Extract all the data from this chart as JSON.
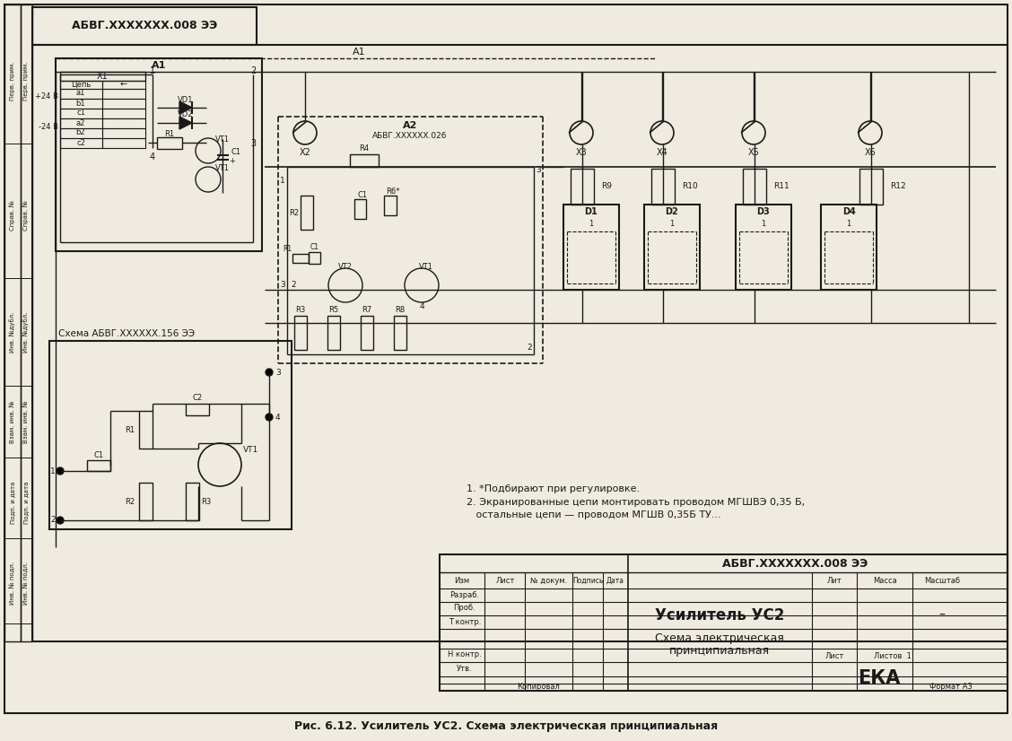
{
  "title": "АБВГ.XXXXXXX.008 ЭЭ",
  "caption": "Рис. 6.12. Усилитель УС2. Схема электрическая принципиальная",
  "bg_color": "#f0ebe0",
  "line_color": "#1a1a1a",
  "title_block": {
    "doc_number": "АБВГ.XXXXXXX.008 ЭЭ",
    "device_name": "Усилитель УС2",
    "scheme_type": "Схема электрическая",
    "scheme_type2": "принципиальная",
    "company": "ЕКА",
    "sheet": "Лист",
    "sheets": "Листов  1",
    "scale": "Масштаб",
    "mass": "Масса",
    "lit": "Лит",
    "format": "Формат А3",
    "copied": "Копировал",
    "izm": "Изм",
    "list": "Лист",
    "ndoc": "№ докум.",
    "podpis": "Подпись",
    "data": "Дата",
    "razrab": "Разраб.",
    "prob": "Проб.",
    "t_kontr": "Т контр.",
    "n_kontr": "Н контр.",
    "utv": "Утв."
  },
  "top_stamp": "АБВГ.XXXXXXX.008 ЭЭ",
  "sub_schema_label": "Схема АБВГ.XXXXXX.156 ЭЭ",
  "note1": "1. *Подбирают при регулировке.",
  "note2": "2. Экранированные цепи монтировать проводом МГШВЭ 0,35 Б,",
  "note3": "   остальные цепи — проводом МГШВ 0,35Б ТУ...",
  "main_block_label": "А1",
  "a2_label": "А2",
  "a2_sub": "АБВГ.XXXXXX.026"
}
